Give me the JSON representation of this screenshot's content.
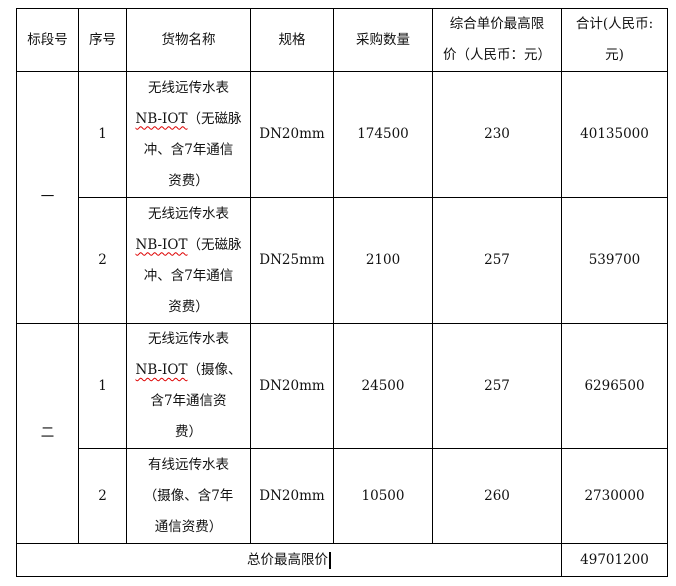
{
  "headers": {
    "section": "标段号",
    "index": "序号",
    "name": "货物名称",
    "spec": "规格",
    "quantity": "采购数量",
    "unit_price": [
      "综合单价最高限",
      "价（人民币：元）"
    ],
    "total": [
      "合计(人民币:",
      "元)"
    ]
  },
  "sections": [
    {
      "label": "一",
      "rows": [
        {
          "index": "1",
          "name": [
            "无线远传水表",
            "NB-IOT",
            "（无磁脉",
            "冲、含7年通信",
            "资费）"
          ],
          "spec": "DN20mm",
          "quantity": "174500",
          "unit_price": "230",
          "total": "40135000"
        },
        {
          "index": "2",
          "name": [
            "无线远传水表",
            "NB-IOT",
            "（无磁脉",
            "冲、含7年通信",
            "资费）"
          ],
          "spec": "DN25mm",
          "quantity": "2100",
          "unit_price": "257",
          "total": "539700"
        }
      ]
    },
    {
      "label": "二",
      "rows": [
        {
          "index": "1",
          "name": [
            "无线远传水表",
            "NB-IOT",
            "（摄像、",
            "含7年通信资",
            "费）"
          ],
          "spec": "DN20mm",
          "quantity": "24500",
          "unit_price": "257",
          "total": "6296500"
        },
        {
          "index": "2",
          "name": [
            "有线远传水表",
            "（摄像、含7年",
            "通信资费）"
          ],
          "spec": "DN20mm",
          "quantity": "10500",
          "unit_price": "260",
          "total": "2730000"
        }
      ]
    }
  ],
  "footer": {
    "label": "总价最高限价",
    "total": "49701200"
  }
}
